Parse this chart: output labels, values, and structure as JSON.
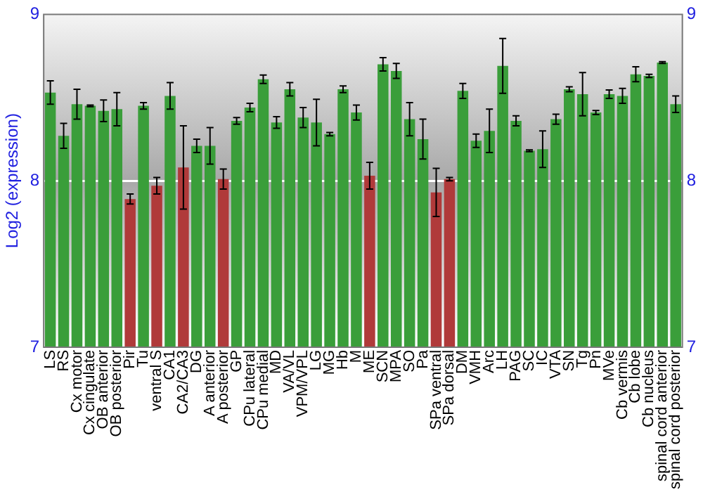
{
  "chart_data": {
    "type": "bar",
    "ylabel": "Log2 (expression)",
    "categories": [
      "LS",
      "RS",
      "Cx motor",
      "Cx cingulate",
      "OB anterior",
      "OB posterior",
      "Pir",
      "Tu",
      "ventral S",
      "CA1",
      "CA2/CA3",
      "DG",
      "A anterior",
      "A posterior",
      "GP",
      "CPu lateral",
      "CPu medial",
      "MD",
      "VA/VL",
      "VPM/VPL",
      "LG",
      "MG",
      "Hb",
      "M",
      "ME",
      "SCN",
      "MPA",
      "SO",
      "Pa",
      "SPa ventral",
      "SPa dorsal",
      "DM",
      "VMH",
      "Arc",
      "LH",
      "PAG",
      "SC",
      "IC",
      "VTA",
      "SN",
      "Tg",
      "Pn",
      "MVe",
      "Cb vermis",
      "Cb lobe",
      "Cb nucleus",
      "spinal cord anterior",
      "spinal cord posterior"
    ],
    "values": [
      8.53,
      8.27,
      8.46,
      8.45,
      8.42,
      8.43,
      7.89,
      8.45,
      7.97,
      8.51,
      8.08,
      8.21,
      8.21,
      8.01,
      8.36,
      8.44,
      8.61,
      8.35,
      8.55,
      8.38,
      8.35,
      8.28,
      8.55,
      8.41,
      8.03,
      8.7,
      8.66,
      8.37,
      8.25,
      7.93,
      8.01,
      8.54,
      8.24,
      8.3,
      8.69,
      8.36,
      8.18,
      8.19,
      8.37,
      8.55,
      8.52,
      8.41,
      8.52,
      8.51,
      8.64,
      8.63,
      8.71,
      8.46
    ],
    "errors": [
      0.07,
      0.075,
      0.09,
      0.005,
      0.065,
      0.1,
      0.03,
      0.02,
      0.05,
      0.08,
      0.25,
      0.04,
      0.11,
      0.06,
      0.02,
      0.025,
      0.025,
      0.035,
      0.04,
      0.06,
      0.14,
      0.01,
      0.02,
      0.045,
      0.08,
      0.04,
      0.045,
      0.1,
      0.12,
      0.145,
      0.01,
      0.045,
      0.04,
      0.13,
      0.165,
      0.03,
      0.005,
      0.11,
      0.03,
      0.015,
      0.13,
      0.012,
      0.025,
      0.045,
      0.045,
      0.01,
      0.005,
      0.05
    ],
    "colors": [
      "#3a9e3a",
      "#3a9e3a",
      "#3a9e3a",
      "#3a9e3a",
      "#3a9e3a",
      "#3a9e3a",
      "#b03a3a",
      "#3a9e3a",
      "#b03a3a",
      "#3a9e3a",
      "#b03a3a",
      "#3a9e3a",
      "#3a9e3a",
      "#b03a3a",
      "#3a9e3a",
      "#3a9e3a",
      "#3a9e3a",
      "#3a9e3a",
      "#3a9e3a",
      "#3a9e3a",
      "#3a9e3a",
      "#3a9e3a",
      "#3a9e3a",
      "#3a9e3a",
      "#b03a3a",
      "#3a9e3a",
      "#3a9e3a",
      "#3a9e3a",
      "#3a9e3a",
      "#b03a3a",
      "#b03a3a",
      "#3a9e3a",
      "#3a9e3a",
      "#3a9e3a",
      "#3a9e3a",
      "#3a9e3a",
      "#3a9e3a",
      "#3a9e3a",
      "#3a9e3a",
      "#3a9e3a",
      "#3a9e3a",
      "#3a9e3a",
      "#3a9e3a",
      "#3a9e3a",
      "#3a9e3a",
      "#3a9e3a",
      "#3a9e3a",
      "#3a9e3a"
    ],
    "ylim": [
      7,
      9
    ],
    "yticks": [
      7,
      8,
      9
    ],
    "y2lim": [
      7,
      9
    ],
    "y2ticks": [
      7,
      8,
      9
    ],
    "grid": "y",
    "legend": false
  }
}
